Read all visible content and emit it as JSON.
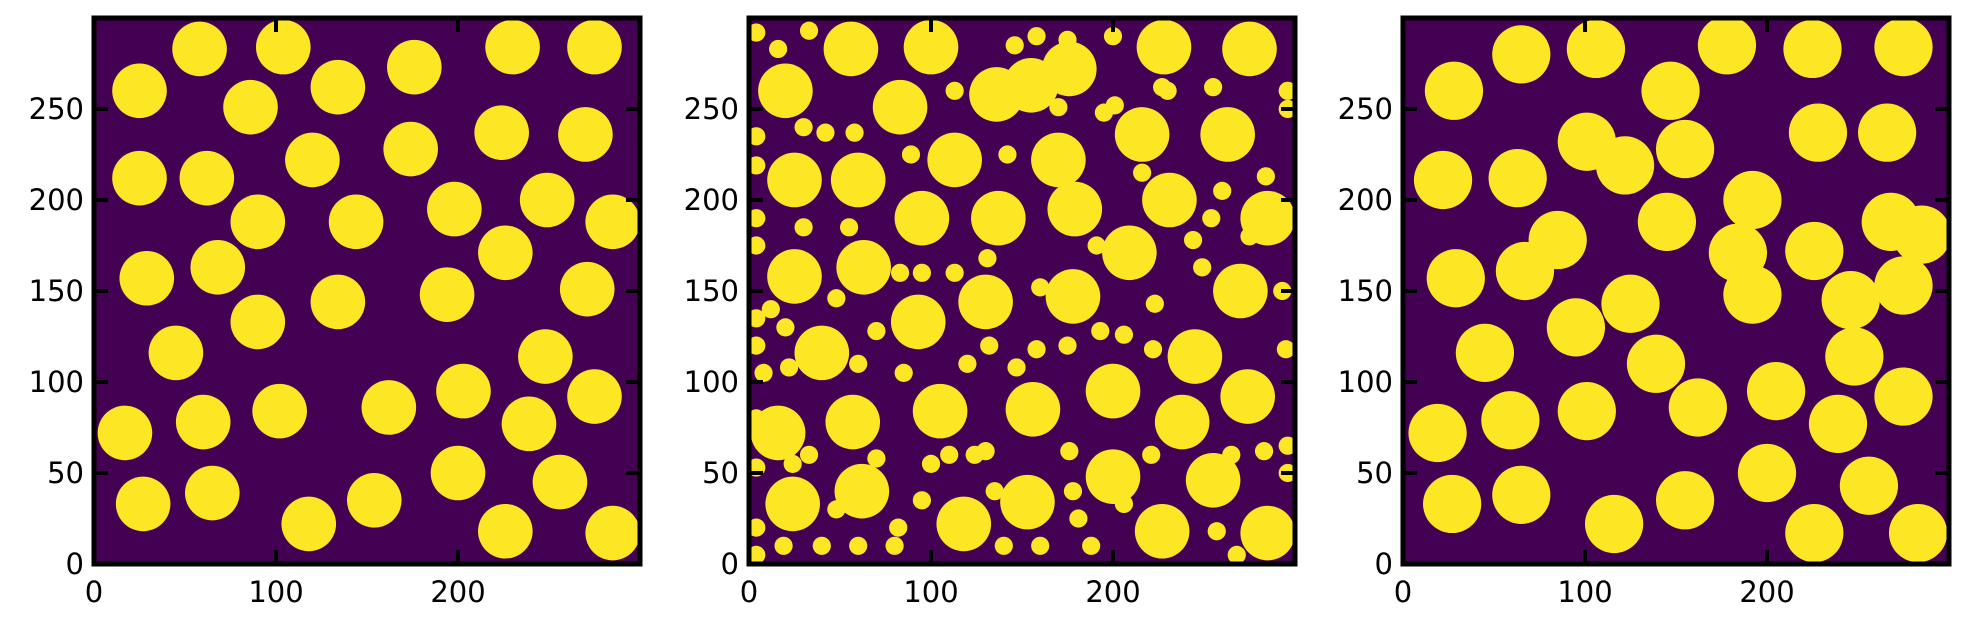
{
  "colors": {
    "background": "#440154",
    "particle": "#fde725",
    "axis": "#000000"
  },
  "chart_data": [
    {
      "type": "heatmap",
      "title": "",
      "xlabel": "",
      "ylabel": "",
      "xlim": [
        0,
        300
      ],
      "ylim": [
        0,
        300
      ],
      "xticks": [
        "0",
        "100",
        "200"
      ],
      "yticks": [
        "0",
        "50",
        "100",
        "150",
        "200",
        "250"
      ],
      "grid": false,
      "description": "binary image of 45 large circular particles",
      "particles": [
        [
          58,
          283,
          15
        ],
        [
          104,
          284,
          15
        ],
        [
          230,
          284,
          15
        ],
        [
          275,
          284,
          15
        ],
        [
          25,
          260,
          15
        ],
        [
          86,
          251,
          15
        ],
        [
          134,
          262,
          15
        ],
        [
          176,
          273,
          15
        ],
        [
          224,
          237,
          15
        ],
        [
          270,
          236,
          15
        ],
        [
          25,
          212,
          15
        ],
        [
          62,
          212,
          15
        ],
        [
          120,
          222,
          15
        ],
        [
          174,
          228,
          15
        ],
        [
          90,
          188,
          15
        ],
        [
          144,
          188,
          15
        ],
        [
          198,
          195,
          15
        ],
        [
          249,
          200,
          15
        ],
        [
          285,
          188,
          15
        ],
        [
          29,
          157,
          15
        ],
        [
          68,
          163,
          15
        ],
        [
          226,
          171,
          15
        ],
        [
          271,
          151,
          15
        ],
        [
          90,
          133,
          15
        ],
        [
          134,
          144,
          15
        ],
        [
          194,
          148,
          15
        ],
        [
          45,
          116,
          15
        ],
        [
          248,
          114,
          15
        ],
        [
          17,
          72,
          15
        ],
        [
          60,
          78,
          15
        ],
        [
          102,
          84,
          15
        ],
        [
          162,
          86,
          15
        ],
        [
          203,
          95,
          15
        ],
        [
          239,
          77,
          15
        ],
        [
          275,
          92,
          15
        ],
        [
          27,
          33,
          15
        ],
        [
          65,
          39,
          15
        ],
        [
          118,
          22,
          15
        ],
        [
          154,
          35,
          15
        ],
        [
          200,
          50,
          15
        ],
        [
          256,
          45,
          15
        ],
        [
          226,
          18,
          15
        ],
        [
          285,
          17,
          15
        ],
        [
          15,
          0,
          0
        ],
        [
          300,
          300,
          0
        ]
      ]
    },
    {
      "type": "heatmap",
      "title": "",
      "xlabel": "",
      "ylabel": "",
      "xlim": [
        0,
        300
      ],
      "ylim": [
        0,
        300
      ],
      "xticks": [
        "0",
        "100",
        "200"
      ],
      "yticks": [
        "0",
        "50",
        "100",
        "150",
        "200",
        "250"
      ],
      "grid": false,
      "description": "binary image of large circular particles with many small particles",
      "particles": [
        [
          56,
          283,
          15
        ],
        [
          100,
          284,
          15
        ],
        [
          155,
          263,
          15
        ],
        [
          176,
          272,
          15
        ],
        [
          228,
          284,
          15
        ],
        [
          275,
          283,
          15
        ],
        [
          20,
          260,
          15
        ],
        [
          83,
          251,
          15
        ],
        [
          136,
          258,
          15
        ],
        [
          25,
          211,
          15
        ],
        [
          60,
          211,
          15
        ],
        [
          113,
          222,
          15
        ],
        [
          170,
          222,
          15
        ],
        [
          216,
          236,
          15
        ],
        [
          263,
          236,
          15
        ],
        [
          95,
          190,
          15
        ],
        [
          137,
          190,
          15
        ],
        [
          179,
          195,
          15
        ],
        [
          231,
          200,
          15
        ],
        [
          285,
          190,
          15
        ],
        [
          25,
          158,
          15
        ],
        [
          63,
          163,
          15
        ],
        [
          209,
          171,
          15
        ],
        [
          270,
          150,
          15
        ],
        [
          93,
          133,
          15
        ],
        [
          130,
          144,
          15
        ],
        [
          178,
          147,
          15
        ],
        [
          40,
          116,
          15
        ],
        [
          245,
          114,
          15
        ],
        [
          16,
          72,
          15
        ],
        [
          57,
          78,
          15
        ],
        [
          105,
          84,
          15
        ],
        [
          156,
          85,
          15
        ],
        [
          200,
          95,
          15
        ],
        [
          238,
          78,
          15
        ],
        [
          274,
          92,
          15
        ],
        [
          24,
          33,
          15
        ],
        [
          62,
          40,
          15
        ],
        [
          118,
          22,
          15
        ],
        [
          153,
          34,
          15
        ],
        [
          200,
          48,
          15
        ],
        [
          255,
          46,
          15
        ],
        [
          227,
          18,
          15
        ],
        [
          285,
          17,
          15
        ],
        [
          4,
          292,
          5
        ],
        [
          16,
          283,
          5
        ],
        [
          33,
          293,
          5
        ],
        [
          230,
          260,
          5
        ],
        [
          255,
          262,
          5
        ],
        [
          296,
          260,
          5
        ],
        [
          296,
          250,
          5
        ],
        [
          4,
          235,
          5
        ],
        [
          42,
          237,
          5
        ],
        [
          58,
          237,
          5
        ],
        [
          77,
          257,
          5
        ],
        [
          113,
          260,
          5
        ],
        [
          146,
          285,
          5
        ],
        [
          158,
          290,
          5
        ],
        [
          200,
          290,
          5
        ],
        [
          4,
          219,
          5
        ],
        [
          30,
          240,
          5
        ],
        [
          89,
          225,
          5
        ],
        [
          142,
          225,
          5
        ],
        [
          170,
          251,
          5
        ],
        [
          195,
          248,
          5
        ],
        [
          227,
          262,
          5
        ],
        [
          260,
          205,
          5
        ],
        [
          4,
          190,
          5
        ],
        [
          30,
          185,
          5
        ],
        [
          55,
          185,
          5
        ],
        [
          83,
          160,
          5
        ],
        [
          113,
          160,
          5
        ],
        [
          131,
          168,
          5
        ],
        [
          191,
          175,
          5
        ],
        [
          244,
          178,
          5
        ],
        [
          4,
          175,
          5
        ],
        [
          12,
          140,
          5
        ],
        [
          48,
          146,
          5
        ],
        [
          95,
          160,
          5
        ],
        [
          160,
          152,
          5
        ],
        [
          193,
          128,
          5
        ],
        [
          223,
          143,
          5
        ],
        [
          249,
          163,
          5
        ],
        [
          4,
          135,
          5
        ],
        [
          8,
          105,
          5
        ],
        [
          20,
          130,
          5
        ],
        [
          70,
          128,
          5
        ],
        [
          85,
          105,
          5
        ],
        [
          132,
          120,
          5
        ],
        [
          158,
          118,
          5
        ],
        [
          206,
          126,
          5
        ],
        [
          4,
          120,
          5
        ],
        [
          22,
          108,
          5
        ],
        [
          60,
          110,
          5
        ],
        [
          120,
          110,
          5
        ],
        [
          147,
          108,
          5
        ],
        [
          175,
          120,
          5
        ],
        [
          222,
          118,
          5
        ],
        [
          295,
          118,
          5
        ],
        [
          4,
          53,
          5
        ],
        [
          33,
          60,
          5
        ],
        [
          70,
          58,
          5
        ],
        [
          100,
          55,
          5
        ],
        [
          130,
          62,
          5
        ],
        [
          176,
          62,
          5
        ],
        [
          221,
          60,
          5
        ],
        [
          265,
          60,
          5
        ],
        [
          4,
          20,
          5
        ],
        [
          19,
          10,
          5
        ],
        [
          40,
          10,
          5
        ],
        [
          82,
          20,
          5
        ],
        [
          124,
          60,
          5
        ],
        [
          140,
          10,
          5
        ],
        [
          160,
          10,
          5
        ],
        [
          188,
          10,
          5
        ],
        [
          4,
          5,
          5
        ],
        [
          60,
          10,
          5
        ],
        [
          80,
          10,
          5
        ],
        [
          110,
          60,
          5
        ],
        [
          178,
          40,
          5
        ],
        [
          206,
          33,
          5
        ],
        [
          257,
          18,
          5
        ],
        [
          296,
          50,
          5
        ],
        [
          4,
          80,
          5
        ],
        [
          24,
          55,
          5
        ],
        [
          48,
          30,
          5
        ],
        [
          95,
          35,
          5
        ],
        [
          135,
          40,
          5
        ],
        [
          181,
          25,
          5
        ],
        [
          283,
          62,
          5
        ],
        [
          296,
          65,
          5
        ],
        [
          254,
          190,
          5
        ],
        [
          275,
          180,
          5
        ],
        [
          284,
          213,
          5
        ],
        [
          293,
          150,
          5
        ],
        [
          216,
          215,
          5
        ],
        [
          201,
          252,
          5
        ],
        [
          175,
          288,
          5
        ],
        [
          268,
          5,
          5
        ]
      ]
    },
    {
      "type": "heatmap",
      "title": "",
      "xlabel": "",
      "ylabel": "",
      "xlim": [
        0,
        300
      ],
      "ylim": [
        0,
        300
      ],
      "xticks": [
        "0",
        "100",
        "200"
      ],
      "yticks": [
        "0",
        "50",
        "100",
        "150",
        "200",
        "250"
      ],
      "grid": false,
      "description": "binary image of clustered particles with small satellites filling the field",
      "particles": [
        [
          28,
          260,
          16
        ],
        [
          65,
          280,
          16
        ],
        [
          106,
          283,
          16
        ],
        [
          147,
          260,
          16
        ],
        [
          178,
          285,
          16
        ],
        [
          225,
          283,
          16
        ],
        [
          275,
          284,
          16
        ],
        [
          22,
          211,
          16
        ],
        [
          63,
          212,
          16
        ],
        [
          101,
          232,
          16
        ],
        [
          122,
          219,
          16
        ],
        [
          155,
          228,
          16
        ],
        [
          192,
          200,
          16
        ],
        [
          228,
          237,
          16
        ],
        [
          266,
          237,
          16
        ],
        [
          85,
          178,
          16
        ],
        [
          145,
          188,
          16
        ],
        [
          184,
          171,
          16
        ],
        [
          226,
          172,
          16
        ],
        [
          268,
          188,
          16
        ],
        [
          285,
          181,
          16
        ],
        [
          29,
          157,
          16
        ],
        [
          67,
          161,
          16
        ],
        [
          125,
          143,
          16
        ],
        [
          192,
          148,
          16
        ],
        [
          246,
          145,
          16
        ],
        [
          275,
          153,
          16
        ],
        [
          45,
          116,
          16
        ],
        [
          95,
          130,
          16
        ],
        [
          139,
          110,
          16
        ],
        [
          248,
          114,
          16
        ],
        [
          19,
          72,
          16
        ],
        [
          59,
          79,
          16
        ],
        [
          101,
          84,
          16
        ],
        [
          162,
          86,
          16
        ],
        [
          205,
          95,
          16
        ],
        [
          239,
          77,
          16
        ],
        [
          275,
          92,
          16
        ],
        [
          27,
          33,
          16
        ],
        [
          65,
          38,
          16
        ],
        [
          116,
          22,
          16
        ],
        [
          155,
          35,
          16
        ],
        [
          200,
          50,
          16
        ],
        [
          256,
          43,
          16
        ],
        [
          226,
          17,
          16
        ],
        [
          283,
          17,
          16
        ]
      ]
    }
  ]
}
